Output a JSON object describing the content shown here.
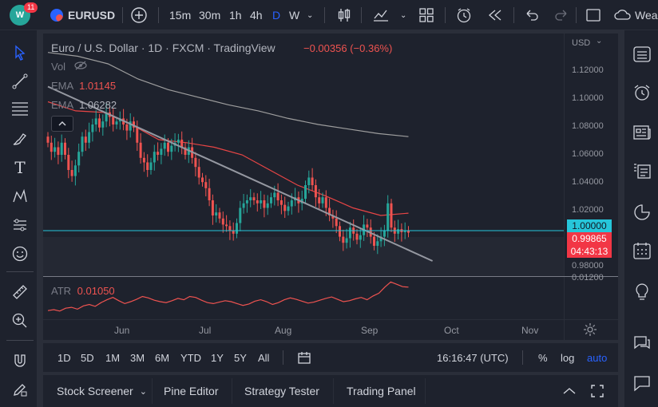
{
  "topbar": {
    "notifications": "11",
    "symbol": "EURUSD",
    "intervals": [
      "15m",
      "30m",
      "1h",
      "4h",
      "D",
      "W"
    ],
    "active_interval": "D",
    "weather_label": "Wea"
  },
  "legend": {
    "title": "Euro / U.S. Dollar · 1D · FXCM · TradingView",
    "change": "−0.00356 (−0.36%)",
    "vol_label": "Vol",
    "ema1_label": "EMA",
    "ema1_value": "1.01145",
    "ema2_label": "EMA",
    "ema2_value": "1.06282",
    "atr_label": "ATR",
    "atr_value": "0.01050"
  },
  "axis": {
    "currency": "USD",
    "price_ticks": [
      "1.12000",
      "1.10000",
      "1.08000",
      "1.06000",
      "1.04000",
      "1.02000",
      "0.98000",
      "0.01200"
    ],
    "level_tag": "1.00000",
    "price_tag": "0.99865",
    "countdown": "04:43:13",
    "time_ticks": [
      "Jun",
      "Jul",
      "Aug",
      "Sep",
      "Oct",
      "Nov"
    ]
  },
  "bottombar": {
    "ranges": [
      "1D",
      "5D",
      "1M",
      "3M",
      "6M",
      "YTD",
      "1Y",
      "5Y",
      "All"
    ],
    "clock": "16:16:47 (UTC)",
    "percent": "%",
    "log": "log",
    "auto": "auto"
  },
  "panelbar": {
    "tabs": [
      "Stock Screener",
      "Pine Editor",
      "Strategy Tester",
      "Trading Panel"
    ]
  },
  "colors": {
    "up": "#26a69a",
    "down": "#ef5350",
    "ema_fast": "#e84545",
    "ema_slow": "#9e9e9e",
    "trendline": "#9598a1",
    "level": "#26c6da",
    "accent": "#2962ff"
  },
  "chart_data": {
    "type": "candlestick",
    "price_range": [
      0.97,
      1.13
    ],
    "level": 1.0,
    "trendline": [
      [
        0,
        1.095
      ],
      [
        112,
        0.98
      ]
    ],
    "ema_fast": [
      1.085,
      1.079,
      1.078,
      1.07,
      1.06,
      1.058,
      1.055,
      1.05,
      1.04,
      1.03,
      1.023,
      1.015,
      1.01,
      1.0115
    ],
    "ema_slow": [
      1.1175,
      1.115,
      1.11,
      1.1,
      1.093,
      1.088,
      1.083,
      1.079,
      1.074,
      1.07,
      1.067,
      1.064,
      1.062
    ],
    "closes": [
      1.058,
      1.052,
      1.055,
      1.05,
      1.058,
      1.05,
      1.04,
      1.036,
      1.043,
      1.052,
      1.062,
      1.058,
      1.065,
      1.07,
      1.074,
      1.068,
      1.072,
      1.078,
      1.075,
      1.07,
      1.072,
      1.074,
      1.07,
      1.066,
      1.072,
      1.068,
      1.058,
      1.048,
      1.045,
      1.04,
      1.045,
      1.052,
      1.05,
      1.054,
      1.058,
      1.052,
      1.056,
      1.058,
      1.06,
      1.055,
      1.05,
      1.055,
      1.048,
      1.042,
      1.035,
      1.032,
      1.028,
      1.02,
      1.01,
      1.012,
      1.008,
      1.004,
      1.003,
      1.0,
      0.998,
      1.005,
      1.015,
      1.018,
      1.02,
      1.022,
      1.02,
      1.018,
      1.02,
      1.015,
      1.018,
      1.022,
      1.025,
      1.02,
      1.017,
      1.013,
      1.016,
      1.02,
      1.022,
      1.018,
      1.021,
      1.03,
      1.035,
      1.03,
      1.022,
      1.018,
      1.022,
      1.015,
      1.01,
      1.008,
      1.003,
      0.996,
      0.992,
      0.995,
      1.002,
      0.998,
      0.994,
      0.997,
      1.004,
      1.002,
      0.996,
      0.99,
      0.993,
      0.996,
      1.0,
      1.018,
      1.002,
      0.998,
      1.001,
      0.999,
      1.0,
      0.99865
    ],
    "atr": [
      0.0055,
      0.0057,
      0.0054,
      0.006,
      0.0062,
      0.0058,
      0.0065,
      0.0068,
      0.0064,
      0.0072,
      0.0078,
      0.0083,
      0.0076,
      0.007,
      0.0074,
      0.0079,
      0.0085,
      0.0082,
      0.0077,
      0.0074,
      0.0072,
      0.0076,
      0.0081,
      0.0078,
      0.0085,
      0.0083,
      0.0077,
      0.0072,
      0.007,
      0.0073,
      0.0076,
      0.0074,
      0.007,
      0.0066,
      0.0069,
      0.0075,
      0.0078,
      0.0074,
      0.0068,
      0.0072,
      0.0078,
      0.0082,
      0.0079,
      0.0075,
      0.0071,
      0.0073,
      0.0077,
      0.0081,
      0.0084,
      0.0079,
      0.0074,
      0.0076,
      0.008,
      0.0083,
      0.0078,
      0.0086,
      0.0092,
      0.0105,
      0.0116,
      0.0111,
      0.0106,
      0.0105
    ]
  }
}
